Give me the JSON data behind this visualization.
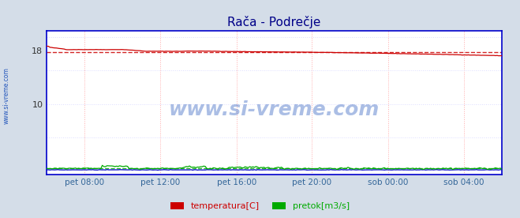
{
  "title": "Rača - Podrečje",
  "title_color": "#000088",
  "bg_color": "#d4dde8",
  "plot_bg_color": "#ffffff",
  "grid_color_v": "#ffaaaa",
  "grid_color_h": "#ddddff",
  "border_color": "#0000cc",
  "ytick_labels": [
    "10",
    "18"
  ],
  "ytick_values": [
    10,
    18
  ],
  "ylim": [
    -0.5,
    21
  ],
  "xtick_labels": [
    "pet 08:00",
    "pet 12:00",
    "pet 16:00",
    "pet 20:00",
    "sob 00:00",
    "sob 04:00"
  ],
  "xtick_positions": [
    0.083,
    0.25,
    0.417,
    0.583,
    0.75,
    0.917
  ],
  "avg_temp": 17.8,
  "avg_pretok": 0.42,
  "temp_color": "#cc0000",
  "pretok_color": "#00aa00",
  "visina_color": "#0000cc",
  "watermark": "www.si-vreme.com",
  "watermark_color": "#2255bb",
  "side_text": "www.si-vreme.com",
  "side_text_color": "#2255bb",
  "legend_items": [
    {
      "label": "temperatura[C]",
      "color": "#cc0000"
    },
    {
      "label": "pretok[m3/s]",
      "color": "#00aa00"
    }
  ],
  "n_points": 288
}
